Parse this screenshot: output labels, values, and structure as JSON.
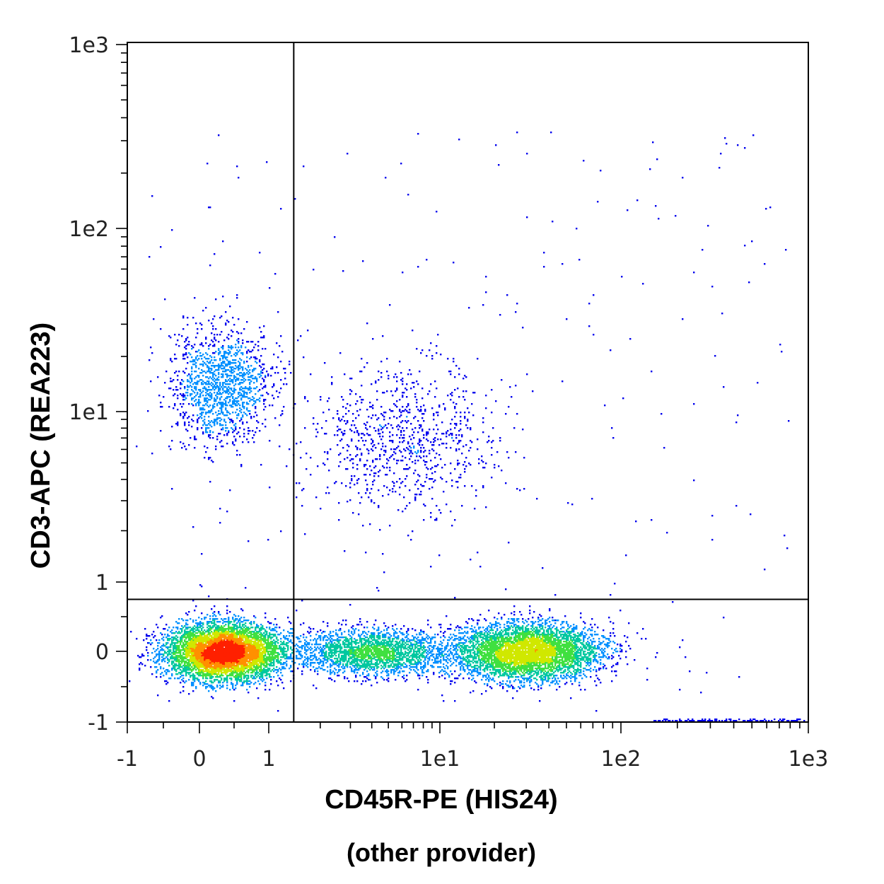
{
  "chart_data": {
    "type": "scatter",
    "subtype": "flow-cytometry-density-dot-plot",
    "xlabel": "CD45R-PE (HIS24)",
    "xlabel_sub": "(other provider)",
    "ylabel": "CD3-APC (REA223)",
    "x_scale": "biexponential",
    "y_scale": "biexponential",
    "xlim": [
      -1,
      1000
    ],
    "ylim": [
      -1,
      1000
    ],
    "x_ticks": [
      "-1",
      "0",
      "1",
      "1e1",
      "1e2",
      "1e3"
    ],
    "y_ticks": [
      "-1",
      "0",
      "1",
      "1e1",
      "1e2",
      "1e3"
    ],
    "quadrant_gate": {
      "x": 1.4,
      "y": 0.75
    },
    "grid": false,
    "legend": "none",
    "density_colors": [
      "#0000ee",
      "#0090ff",
      "#00c8a0",
      "#40e040",
      "#d0e800",
      "#ff9000",
      "#ff2000"
    ],
    "populations": [
      {
        "center": [
          0.35,
          0.0
        ],
        "spread": [
          0.45,
          0.22
        ],
        "count": 9000,
        "peak": "high"
      },
      {
        "center": [
          30,
          0.0
        ],
        "spread": [
          20,
          0.22
        ],
        "count": 6000,
        "peak": "medium"
      },
      {
        "center": [
          4.0,
          0.0
        ],
        "spread": [
          3.0,
          0.18
        ],
        "count": 2500,
        "peak": "low"
      },
      {
        "center": [
          0.3,
          14
        ],
        "spread": [
          0.4,
          7
        ],
        "count": 1400,
        "peak": "sparse"
      },
      {
        "center": [
          6.0,
          7.0
        ],
        "spread": [
          6.0,
          5.0
        ],
        "count": 900,
        "peak": "sparse"
      }
    ]
  }
}
